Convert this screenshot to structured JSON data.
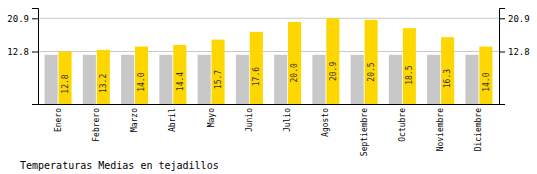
{
  "chart_data": {
    "type": "bar",
    "title": "Temperaturas Medias en tejadillos",
    "categories": [
      "Enero",
      "Febrero",
      "Marzo",
      "Abril",
      "Mayo",
      "Junio",
      "Julio",
      "Agosto",
      "Septiembre",
      "Octubre",
      "Noviembre",
      "Diciembre"
    ],
    "series": [
      {
        "color": "#C8C8C8",
        "values": [
          12.0,
          12.0,
          12.0,
          12.0,
          12.0,
          12.0,
          12.0,
          12.0,
          12.0,
          12.0,
          12.0,
          12.0
        ]
      },
      {
        "color": "#FFD700",
        "values": [
          12.8,
          13.2,
          14.0,
          14.4,
          15.7,
          17.6,
          20.0,
          20.9,
          20.5,
          18.5,
          16.3,
          14.0
        ],
        "data_labels": true,
        "value_labels": [
          "12.8",
          "13.2",
          "14.0",
          "14.4",
          "15.7",
          "17.6",
          "20.0",
          "20.9",
          "20.5",
          "18.5",
          "16.3",
          "14.0"
        ]
      }
    ],
    "ylim": [
      0,
      23.408
    ],
    "yticks": [
      12.8,
      20.9
    ],
    "y2lim": [
      0,
      23.408
    ],
    "y2ticks": [
      12.8,
      20.9
    ],
    "grid": true
  }
}
